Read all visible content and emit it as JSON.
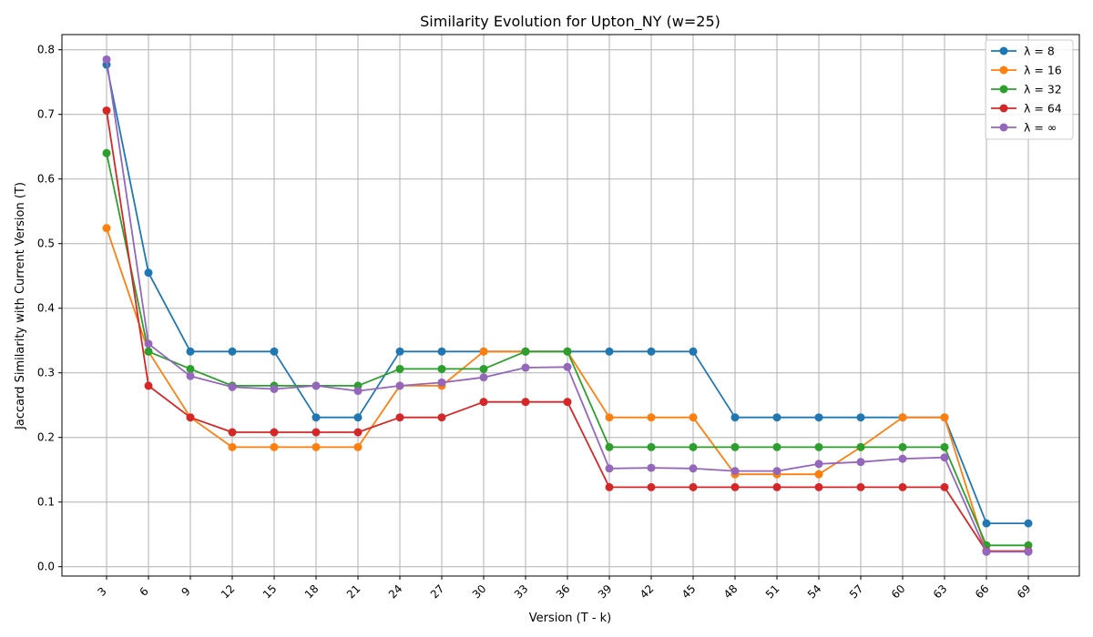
{
  "chart_data": {
    "type": "line",
    "title": "Similarity Evolution for Upton_NY (w=25)",
    "xlabel": "Version (T - k)",
    "ylabel": "Jaccard Similarity with Current Version (T)",
    "x": [
      3,
      6,
      9,
      12,
      15,
      18,
      21,
      24,
      27,
      30,
      33,
      36,
      39,
      42,
      45,
      48,
      51,
      54,
      57,
      60,
      63,
      66,
      69
    ],
    "xticks": [
      "3",
      "6",
      "9",
      "12",
      "15",
      "18",
      "21",
      "24",
      "27",
      "30",
      "33",
      "36",
      "39",
      "42",
      "45",
      "48",
      "51",
      "54",
      "57",
      "60",
      "63",
      "66",
      "69"
    ],
    "ylim": [
      0,
      0.82
    ],
    "yticks": [
      "0.0",
      "0.1",
      "0.2",
      "0.3",
      "0.4",
      "0.5",
      "0.6",
      "0.7",
      "0.8"
    ],
    "grid": true,
    "legend_position": "top-right",
    "series": [
      {
        "name": "λ = 8",
        "color": "#1f77b4",
        "values": [
          0.777,
          0.455,
          0.333,
          0.333,
          0.333,
          0.231,
          0.231,
          0.333,
          0.333,
          0.333,
          0.333,
          0.333,
          0.333,
          0.333,
          0.333,
          0.231,
          0.231,
          0.231,
          0.231,
          0.231,
          0.231,
          0.067,
          0.067
        ]
      },
      {
        "name": "λ = 16",
        "color": "#ff7f0e",
        "values": [
          0.524,
          0.333,
          0.231,
          0.185,
          0.185,
          0.185,
          0.185,
          0.28,
          0.28,
          0.333,
          0.333,
          0.333,
          0.231,
          0.231,
          0.231,
          0.143,
          0.143,
          0.143,
          0.185,
          0.231,
          0.231,
          0.024,
          0.024
        ]
      },
      {
        "name": "λ = 32",
        "color": "#2ca02c",
        "values": [
          0.64,
          0.333,
          0.306,
          0.28,
          0.28,
          0.28,
          0.28,
          0.306,
          0.306,
          0.306,
          0.333,
          0.333,
          0.185,
          0.185,
          0.185,
          0.185,
          0.185,
          0.185,
          0.185,
          0.185,
          0.185,
          0.033,
          0.033
        ]
      },
      {
        "name": "λ = 64",
        "color": "#d62728",
        "values": [
          0.706,
          0.28,
          0.231,
          0.208,
          0.208,
          0.208,
          0.208,
          0.231,
          0.231,
          0.255,
          0.255,
          0.255,
          0.123,
          0.123,
          0.123,
          0.123,
          0.123,
          0.123,
          0.123,
          0.123,
          0.123,
          0.024,
          0.024
        ]
      },
      {
        "name": "λ = ∞",
        "color": "#9467bd",
        "values": [
          0.785,
          0.345,
          0.295,
          0.278,
          0.275,
          0.28,
          0.272,
          0.28,
          0.285,
          0.293,
          0.308,
          0.309,
          0.152,
          0.153,
          0.152,
          0.148,
          0.148,
          0.159,
          0.162,
          0.167,
          0.169,
          0.023,
          0.023
        ]
      }
    ]
  }
}
